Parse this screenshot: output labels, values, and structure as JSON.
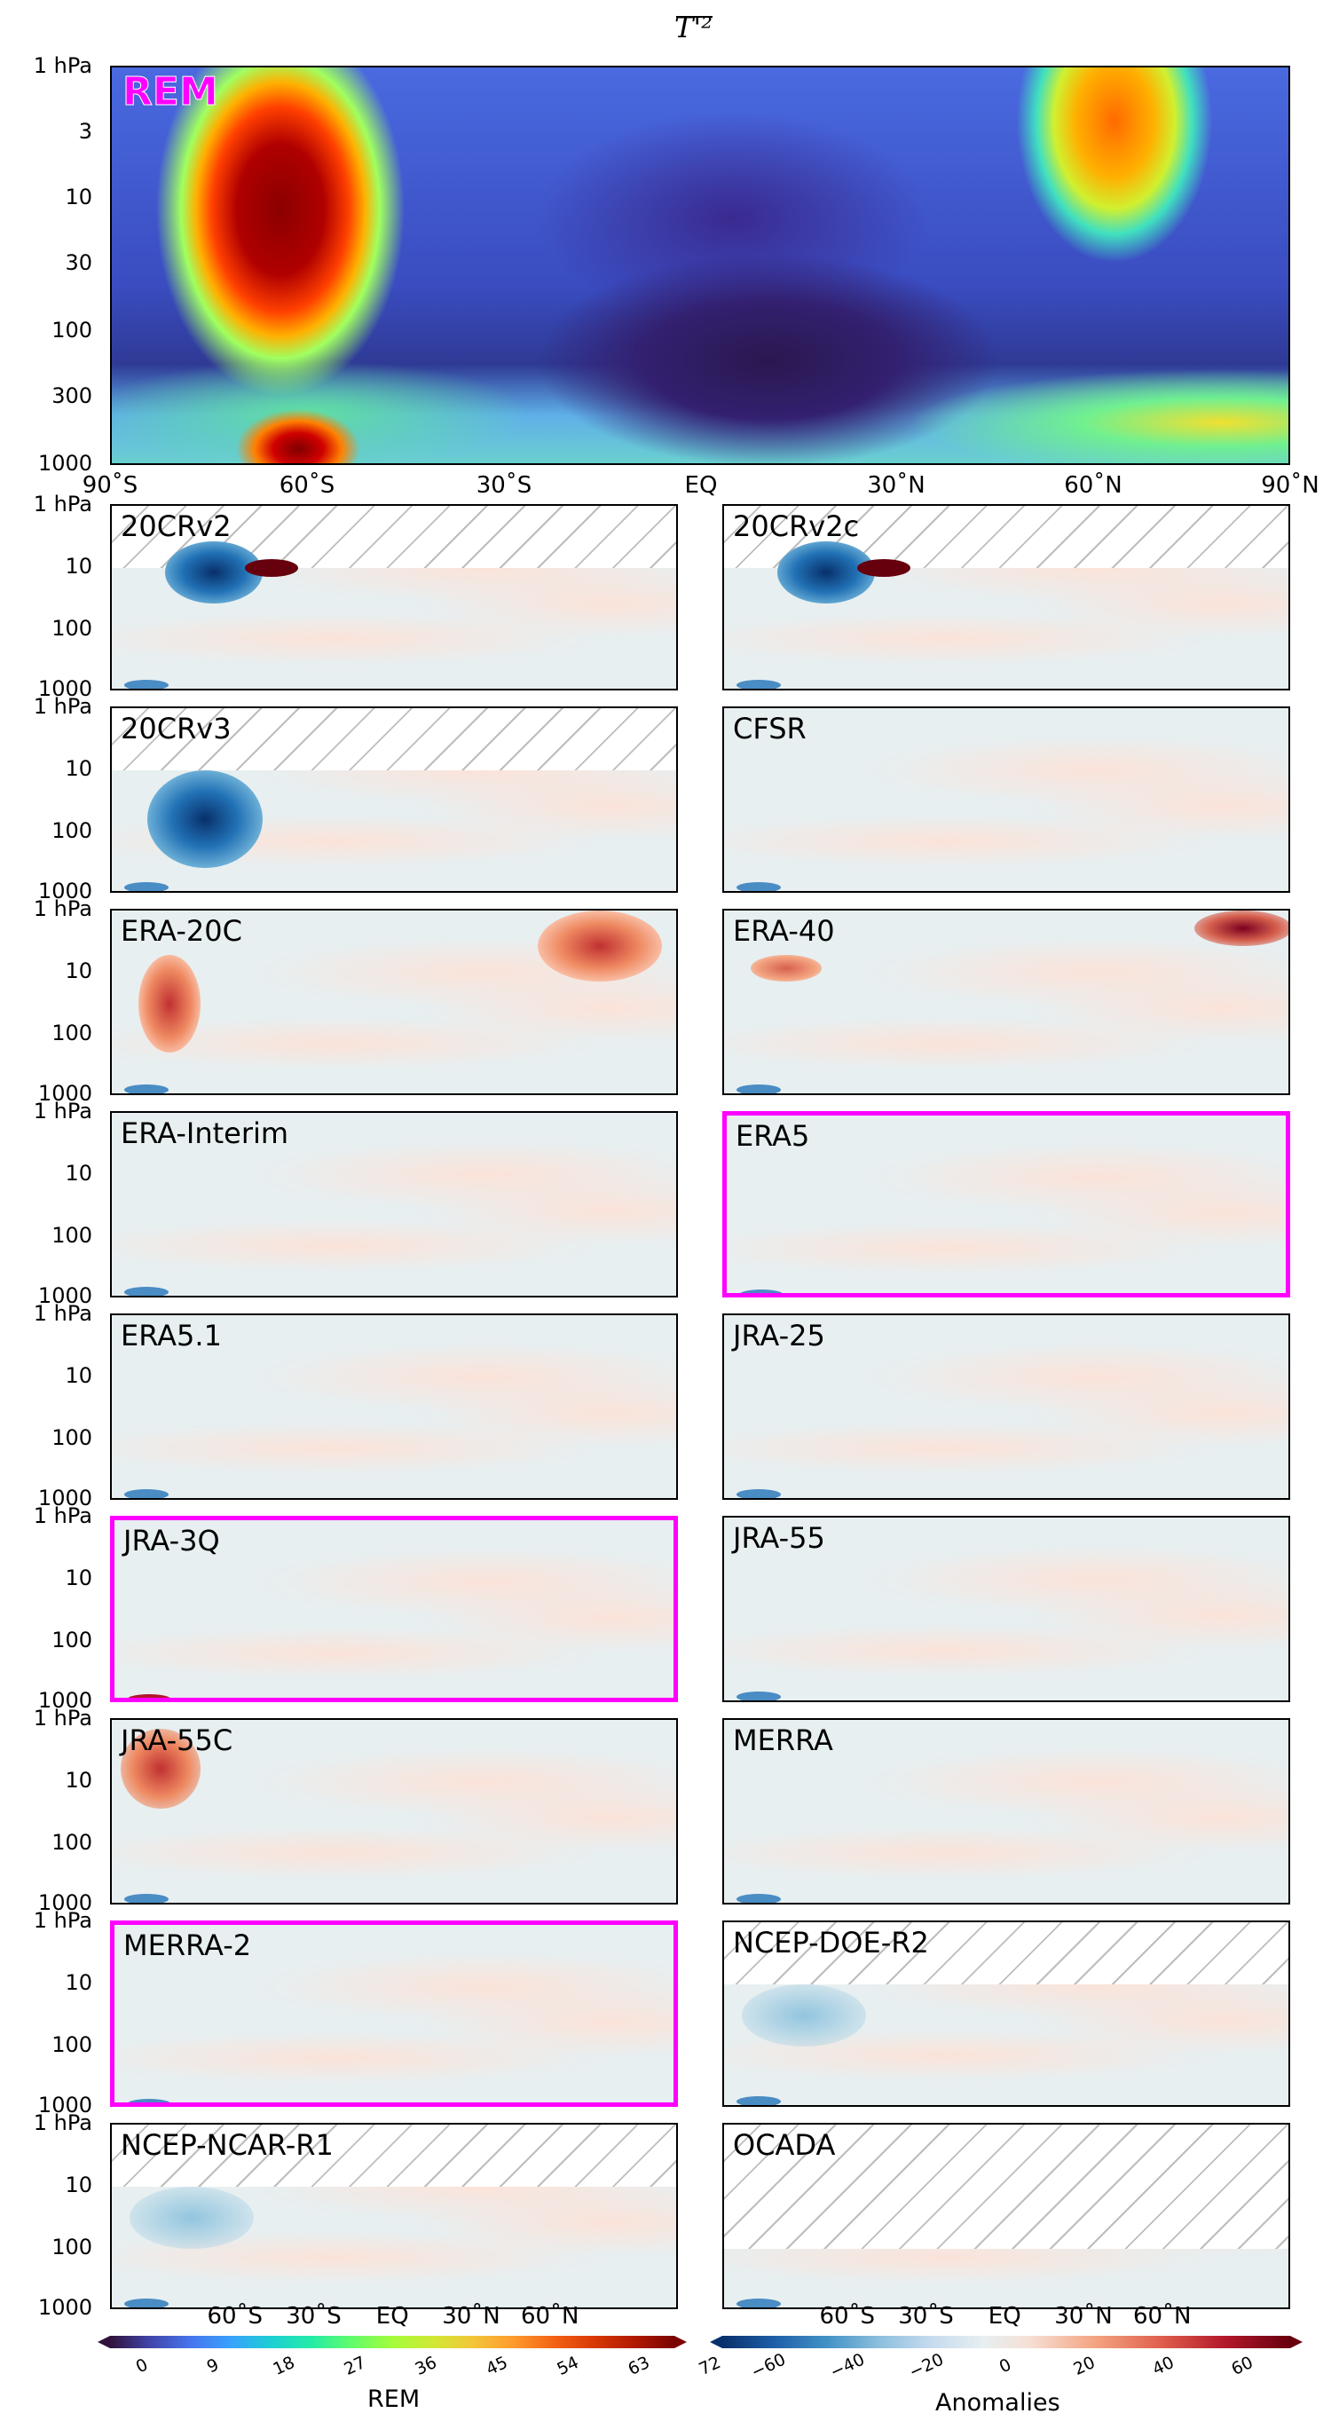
{
  "title": "T'²",
  "rem_label": "REM",
  "rem_color": "#ff00ff",
  "y_axis_ticks_main": [
    "1 hPa",
    "3",
    "10",
    "30",
    "100",
    "300",
    "1000"
  ],
  "y_axis_ticks_small": [
    "1 hPa",
    "10",
    "100",
    "1000"
  ],
  "x_axis_ticks_main": [
    "90˚S",
    "60˚S",
    "30˚S",
    "EQ",
    "30˚N",
    "60˚N",
    "90˚N"
  ],
  "x_axis_ticks_bottom": [
    "60˚S",
    "30˚S",
    "EQ",
    "30˚N",
    "60˚N"
  ],
  "panels": [
    {
      "name": "20CRv2",
      "highlight": false
    },
    {
      "name": "20CRv2c",
      "highlight": false
    },
    {
      "name": "20CRv3",
      "highlight": false
    },
    {
      "name": "CFSR",
      "highlight": false
    },
    {
      "name": "ERA-20C",
      "highlight": false
    },
    {
      "name": "ERA-40",
      "highlight": false
    },
    {
      "name": "ERA-Interim",
      "highlight": false
    },
    {
      "name": "ERA5",
      "highlight": true
    },
    {
      "name": "ERA5.1",
      "highlight": false
    },
    {
      "name": "JRA-25",
      "highlight": false
    },
    {
      "name": "JRA-3Q",
      "highlight": true
    },
    {
      "name": "JRA-55",
      "highlight": false
    },
    {
      "name": "JRA-55C",
      "highlight": false
    },
    {
      "name": "MERRA",
      "highlight": false
    },
    {
      "name": "MERRA-2",
      "highlight": true
    },
    {
      "name": "NCEP-DOE-R2",
      "highlight": false
    },
    {
      "name": "NCEP-NCAR-R1",
      "highlight": false
    },
    {
      "name": "OCADA",
      "highlight": false
    }
  ],
  "colorbar_rem": {
    "label": "REM",
    "ticks": [
      "0",
      "9",
      "18",
      "27",
      "36",
      "45",
      "54",
      "63",
      "72"
    ]
  },
  "colorbar_anom": {
    "label": "Anomalies",
    "ticks": [
      "−60",
      "−40",
      "−20",
      "0",
      "20",
      "40",
      "60"
    ]
  },
  "chart_data": {
    "type": "heatmap",
    "title": "T'²",
    "x": [
      "90˚S",
      "60˚S",
      "30˚S",
      "EQ",
      "30˚N",
      "60˚N",
      "90˚N"
    ],
    "y": [
      "1 hPa",
      "3",
      "10",
      "30",
      "100",
      "300",
      "1000"
    ],
    "y_scale": "log",
    "colorbars": [
      {
        "label": "REM",
        "range": [
          0,
          72
        ]
      },
      {
        "label": "Anomalies",
        "range": [
          -60,
          60
        ]
      }
    ]
  }
}
